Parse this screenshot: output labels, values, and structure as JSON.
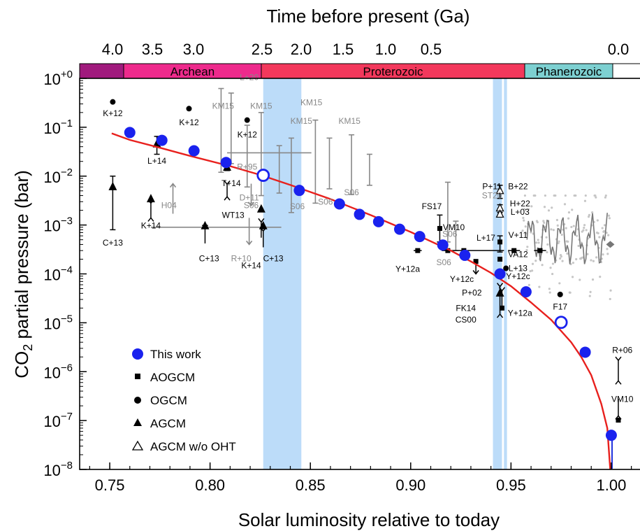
{
  "chart_data": {
    "type": "scatter",
    "top_axis": {
      "label": "Time before present (Ga)",
      "ticks": [
        "4.0",
        "3.5",
        "3.0",
        "2.5",
        "2.0",
        "1.5",
        "1.0",
        "0.5",
        "0.0"
      ]
    },
    "x_axis": {
      "label": "Solar luminosity relative to today",
      "ticks": [
        "0.75",
        "0.80",
        "0.85",
        "0.90",
        "0.95",
        "1.00"
      ],
      "range": [
        0.735,
        1.015
      ]
    },
    "y_axis": {
      "label_main": "CO",
      "label_sub": "2",
      "label_rest": " partial pressure  (bar)",
      "scale": "log",
      "range": [
        1e-08,
        1
      ],
      "ticks": [
        {
          "base": "10",
          "exp": "+0",
          "value": 0
        },
        {
          "base": "10",
          "exp": "−1",
          "value": -1
        },
        {
          "base": "10",
          "exp": "−2",
          "value": -2
        },
        {
          "base": "10",
          "exp": "−3",
          "value": -3
        },
        {
          "base": "10",
          "exp": "−4",
          "value": -4
        },
        {
          "base": "10",
          "exp": "−5",
          "value": -5
        },
        {
          "base": "10",
          "exp": "−6",
          "value": -6
        },
        {
          "base": "10",
          "exp": "−7",
          "value": -7
        },
        {
          "base": "10",
          "exp": "−8",
          "value": -8
        }
      ]
    },
    "eras": [
      {
        "name": "",
        "x0": 0.735,
        "x1": 0.751,
        "color": "#a01a7d"
      },
      {
        "name": "Archean",
        "x0": 0.751,
        "x1": 0.8255,
        "color": "#ee2a8c"
      },
      {
        "name": "Proterozoic",
        "x0": 0.8255,
        "x1": 0.955,
        "color": "#f3385c"
      },
      {
        "name": "Phanerozoic",
        "x0": 0.955,
        "x1": 1.0,
        "color": "#7dd0d1"
      },
      {
        "name": "",
        "x0": 1.0,
        "x1": 1.015,
        "color": "#ffffff"
      }
    ],
    "shaded_bands": [
      {
        "x0": 0.8265,
        "x1": 0.8455
      },
      {
        "x0": 0.941,
        "x1": 0.9455
      },
      {
        "x0": 0.9465,
        "x1": 0.948
      }
    ],
    "fit_curve": {
      "color": "#e8201d",
      "points": [
        [
          0.751,
          0.075
        ],
        [
          0.76,
          0.055
        ],
        [
          0.775,
          0.038
        ],
        [
          0.79,
          0.026
        ],
        [
          0.81,
          0.016
        ],
        [
          0.825,
          0.0106
        ],
        [
          0.84,
          0.0066
        ],
        [
          0.86,
          0.0034
        ],
        [
          0.88,
          0.0016
        ],
        [
          0.9,
          0.00072
        ],
        [
          0.92,
          0.0003
        ],
        [
          0.93,
          0.00018
        ],
        [
          0.94,
          0.000105
        ],
        [
          0.95,
          5.6e-05
        ],
        [
          0.96,
          2.6e-05
        ],
        [
          0.97,
          1.15e-05
        ],
        [
          0.98,
          4e-06
        ],
        [
          0.985,
          2e-06
        ],
        [
          0.99,
          8.5e-07
        ],
        [
          0.995,
          2.2e-07
        ],
        [
          0.998,
          7e-08
        ],
        [
          1.0,
          5e-09
        ]
      ]
    },
    "series": [
      {
        "name": "This work",
        "marker": "blue-circle",
        "points": [
          {
            "x": 0.76,
            "y": 0.078
          },
          {
            "x": 0.776,
            "y": 0.054
          },
          {
            "x": 0.792,
            "y": 0.033
          },
          {
            "x": 0.808,
            "y": 0.019
          },
          {
            "x": 0.8265,
            "y": 0.0104,
            "open": true
          },
          {
            "x": 0.8445,
            "y": 0.0051
          },
          {
            "x": 0.8645,
            "y": 0.0027
          },
          {
            "x": 0.8745,
            "y": 0.00165
          },
          {
            "x": 0.884,
            "y": 0.00117
          },
          {
            "x": 0.8945,
            "y": 0.00082
          },
          {
            "x": 0.9045,
            "y": 0.00058
          },
          {
            "x": 0.916,
            "y": 0.00039
          },
          {
            "x": 0.927,
            "y": 0.00024
          },
          {
            "x": 0.9445,
            "y": 0.0001
          },
          {
            "x": 0.9575,
            "y": 4.3e-05
          },
          {
            "x": 0.975,
            "y": 1.02e-05,
            "open": true
          },
          {
            "x": 0.987,
            "y": 2.5e-06
          },
          {
            "x": 1.0,
            "y": 5e-08
          }
        ]
      },
      {
        "name": "AOGCM",
        "marker": "square"
      },
      {
        "name": "OGCM",
        "marker": "circle"
      },
      {
        "name": "AGCM",
        "marker": "triangle"
      },
      {
        "name": "AGCM w/o OHT",
        "marker": "open-triangle"
      }
    ],
    "annotations_black": [
      {
        "text": "K+12",
        "x": 0.7515,
        "y": 0.17
      },
      {
        "text": "K+12",
        "x": 0.7895,
        "y": 0.11
      },
      {
        "text": "K+12",
        "x": 0.8185,
        "y": 0.062
      },
      {
        "text": "L+14",
        "x": 0.7735,
        "y": 0.018
      },
      {
        "text": "T+14",
        "x": 0.8105,
        "y": 0.0063
      },
      {
        "text": "C+13",
        "x": 0.7515,
        "y": 0.00038
      },
      {
        "text": "K+14",
        "x": 0.7705,
        "y": 0.00085
      },
      {
        "text": "WT13",
        "x": 0.8115,
        "y": 0.0014
      },
      {
        "text": "C+13",
        "x": 0.7995,
        "y": 0.00018
      },
      {
        "text": "K+14",
        "x": 0.8205,
        "y": 0.00013
      },
      {
        "text": "C+13",
        "x": 0.8315,
        "y": 0.00018
      },
      {
        "text": "FS17",
        "x": 0.9105,
        "y": 0.0021
      },
      {
        "text": "VM10",
        "x": 0.9215,
        "y": 0.00078
      },
      {
        "text": "Y+12a",
        "x": 0.8985,
        "y": 0.00011
      },
      {
        "text": "Y+12c",
        "x": 0.9255,
        "y": 6.8e-05
      },
      {
        "text": "P+02",
        "x": 0.9305,
        "y": 3.6e-05
      },
      {
        "text": "FK14",
        "x": 0.9275,
        "y": 1.75e-05
      },
      {
        "text": "CS00",
        "x": 0.9275,
        "y": 1.02e-05
      },
      {
        "text": "Y+12a",
        "x": 0.9545,
        "y": 1.38e-05
      },
      {
        "text": "L+17",
        "x": 0.9375,
        "y": 0.00048
      },
      {
        "text": "V+11",
        "x": 0.9535,
        "y": 0.00055
      },
      {
        "text": "VA12",
        "x": 0.9535,
        "y": 0.00022
      },
      {
        "text": "L+13",
        "x": 0.9535,
        "y": 0.000115
      },
      {
        "text": "Y+12c",
        "x": 0.9535,
        "y": 7.8e-05
      },
      {
        "text": "P+11",
        "x": 0.9405,
        "y": 0.0054
      },
      {
        "text": "B+22",
        "x": 0.9535,
        "y": 0.0054
      },
      {
        "text": "H+22",
        "x": 0.9545,
        "y": 0.0024
      },
      {
        "text": "L+03",
        "x": 0.9545,
        "y": 0.00163
      },
      {
        "text": "F17",
        "x": 0.9745,
        "y": 1.85e-05
      },
      {
        "text": "R+06",
        "x": 1.0055,
        "y": 2.4e-06
      },
      {
        "text": "VM10",
        "x": 1.0055,
        "y": 2.4e-07
      }
    ],
    "annotations_gray": [
      {
        "text": "L+20",
        "x": 0.8195,
        "y": 0.92
      },
      {
        "text": "KM15",
        "x": 0.8065,
        "y": 0.24
      },
      {
        "text": "KM15",
        "x": 0.8255,
        "y": 0.24
      },
      {
        "text": "KM15",
        "x": 0.8505,
        "y": 0.28
      },
      {
        "text": "KM15",
        "x": 0.8455,
        "y": 0.118
      },
      {
        "text": "KM15",
        "x": 0.8695,
        "y": 0.118
      },
      {
        "text": "R+95",
        "x": 0.8185,
        "y": 0.0135
      },
      {
        "text": "ST20",
        "x": 0.9405,
        "y": 0.0035
      },
      {
        "text": "D+11",
        "x": 0.8195,
        "y": 0.0032
      },
      {
        "text": "H04",
        "x": 0.7795,
        "y": 0.0022
      },
      {
        "text": "S06",
        "x": 0.8205,
        "y": 0.0022
      },
      {
        "text": "S06",
        "x": 0.8435,
        "y": 0.0021
      },
      {
        "text": "S06",
        "x": 0.8575,
        "y": 0.0026
      },
      {
        "text": "S06",
        "x": 0.8705,
        "y": 0.0041
      },
      {
        "text": "S06",
        "x": 0.9195,
        "y": 0.00057
      },
      {
        "text": "S06",
        "x": 0.9165,
        "y": 0.00015
      },
      {
        "text": "R+10",
        "x": 0.8155,
        "y": 0.00018
      }
    ]
  }
}
